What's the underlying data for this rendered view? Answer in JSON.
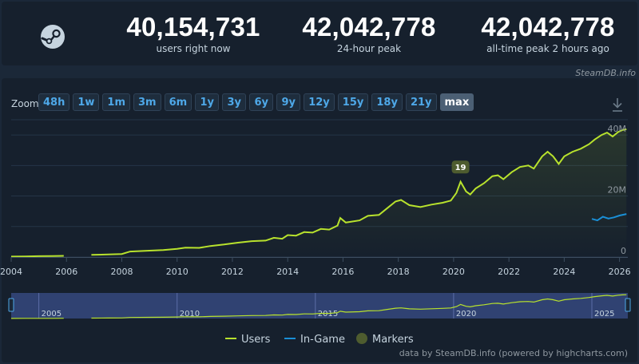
{
  "stats": [
    {
      "value": "40,154,731",
      "label": "users right now"
    },
    {
      "value": "42,042,778",
      "label": "24-hour peak"
    },
    {
      "value": "42,042,778",
      "label": "all-time peak 2 hours ago"
    }
  ],
  "credit_top": "SteamDB.info",
  "zoom": {
    "label": "Zoom",
    "options": [
      "48h",
      "1w",
      "1m",
      "3m",
      "6m",
      "1y",
      "3y",
      "6y",
      "9y",
      "12y",
      "15y",
      "18y",
      "21y",
      "max"
    ],
    "selected": "max"
  },
  "credit_bottom": "data by SteamDB.info (powered by highcharts.com)",
  "colors": {
    "users": "#b8e22d",
    "in_game": "#1a8fd6",
    "marker": "#4e5c2f",
    "background": "#16202d",
    "navigator": "#3a4d8a"
  },
  "chart_data": {
    "type": "line",
    "x_axis": {
      "type": "year",
      "ticks": [
        2004,
        2006,
        2008,
        2010,
        2012,
        2014,
        2016,
        2018,
        2020,
        2022,
        2024,
        2026
      ],
      "tick_labels": [
        "2004",
        "2006",
        "2008",
        "2010",
        "2012",
        "2014",
        "2016",
        "2018",
        "2020",
        "2022",
        "2024",
        "2026"
      ],
      "range": [
        2004,
        2026.3
      ]
    },
    "y_axis": {
      "ticks": [
        0,
        20000000,
        40000000
      ],
      "tick_labels": [
        "0",
        "20M",
        "40M"
      ],
      "range": [
        0,
        45000000
      ],
      "position": "right"
    },
    "grid": true,
    "series": [
      {
        "name": "Users",
        "points": [
          [
            2004.0,
            150000
          ],
          [
            2004.5,
            220000
          ],
          [
            2005.0,
            280000
          ],
          [
            2005.5,
            330000
          ],
          [
            2005.9,
            380000
          ],
          [
            2006.9,
            700000
          ],
          [
            2007.5,
            850000
          ],
          [
            2008.0,
            1000000
          ],
          [
            2008.3,
            1800000
          ],
          [
            2009.0,
            2100000
          ],
          [
            2009.5,
            2300000
          ],
          [
            2010.0,
            2700000
          ],
          [
            2010.3,
            3100000
          ],
          [
            2010.8,
            3000000
          ],
          [
            2011.2,
            3600000
          ],
          [
            2011.7,
            4100000
          ],
          [
            2012.2,
            4700000
          ],
          [
            2012.7,
            5200000
          ],
          [
            2013.2,
            5400000
          ],
          [
            2013.5,
            6300000
          ],
          [
            2013.8,
            6000000
          ],
          [
            2014.0,
            7200000
          ],
          [
            2014.3,
            7000000
          ],
          [
            2014.6,
            8200000
          ],
          [
            2014.9,
            8000000
          ],
          [
            2015.2,
            9200000
          ],
          [
            2015.5,
            9000000
          ],
          [
            2015.8,
            10300000
          ],
          [
            2015.9,
            12800000
          ],
          [
            2016.1,
            11300000
          ],
          [
            2016.6,
            12000000
          ],
          [
            2016.9,
            13500000
          ],
          [
            2017.3,
            13800000
          ],
          [
            2017.6,
            16000000
          ],
          [
            2017.9,
            18200000
          ],
          [
            2018.1,
            18700000
          ],
          [
            2018.4,
            17000000
          ],
          [
            2018.8,
            16400000
          ],
          [
            2019.2,
            17200000
          ],
          [
            2019.6,
            17800000
          ],
          [
            2019.9,
            18500000
          ],
          [
            2020.1,
            21000000
          ],
          [
            2020.25,
            24700000
          ],
          [
            2020.45,
            21500000
          ],
          [
            2020.6,
            20500000
          ],
          [
            2020.8,
            22500000
          ],
          [
            2021.1,
            24200000
          ],
          [
            2021.4,
            26500000
          ],
          [
            2021.6,
            26800000
          ],
          [
            2021.8,
            25500000
          ],
          [
            2022.1,
            27800000
          ],
          [
            2022.4,
            29500000
          ],
          [
            2022.7,
            30000000
          ],
          [
            2022.9,
            29000000
          ],
          [
            2023.2,
            33000000
          ],
          [
            2023.4,
            34500000
          ],
          [
            2023.6,
            33000000
          ],
          [
            2023.8,
            30500000
          ],
          [
            2024.0,
            33000000
          ],
          [
            2024.3,
            34500000
          ],
          [
            2024.6,
            35500000
          ],
          [
            2024.9,
            37000000
          ],
          [
            2025.1,
            38500000
          ],
          [
            2025.35,
            40000000
          ],
          [
            2025.55,
            40800000
          ],
          [
            2025.75,
            39500000
          ],
          [
            2025.95,
            41000000
          ],
          [
            2026.1,
            41600000
          ],
          [
            2026.25,
            41900000
          ]
        ]
      },
      {
        "name": "In-Game",
        "points": [
          [
            2025.0,
            12500000
          ],
          [
            2025.2,
            12000000
          ],
          [
            2025.4,
            13200000
          ],
          [
            2025.6,
            12600000
          ],
          [
            2025.8,
            13000000
          ],
          [
            2026.0,
            13600000
          ],
          [
            2026.25,
            14100000
          ]
        ]
      },
      {
        "name": "Markers",
        "points": [
          [
            2020.25,
            29500000,
            "19"
          ]
        ]
      }
    ],
    "navigator": {
      "tick_labels": [
        "2005",
        "2010",
        "2015",
        "2020",
        "2025"
      ],
      "ticks": [
        2005,
        2010,
        2015,
        2020,
        2025
      ]
    },
    "legend": {
      "placement": "bottom",
      "entries": [
        "Users",
        "In-Game",
        "Markers"
      ]
    }
  }
}
